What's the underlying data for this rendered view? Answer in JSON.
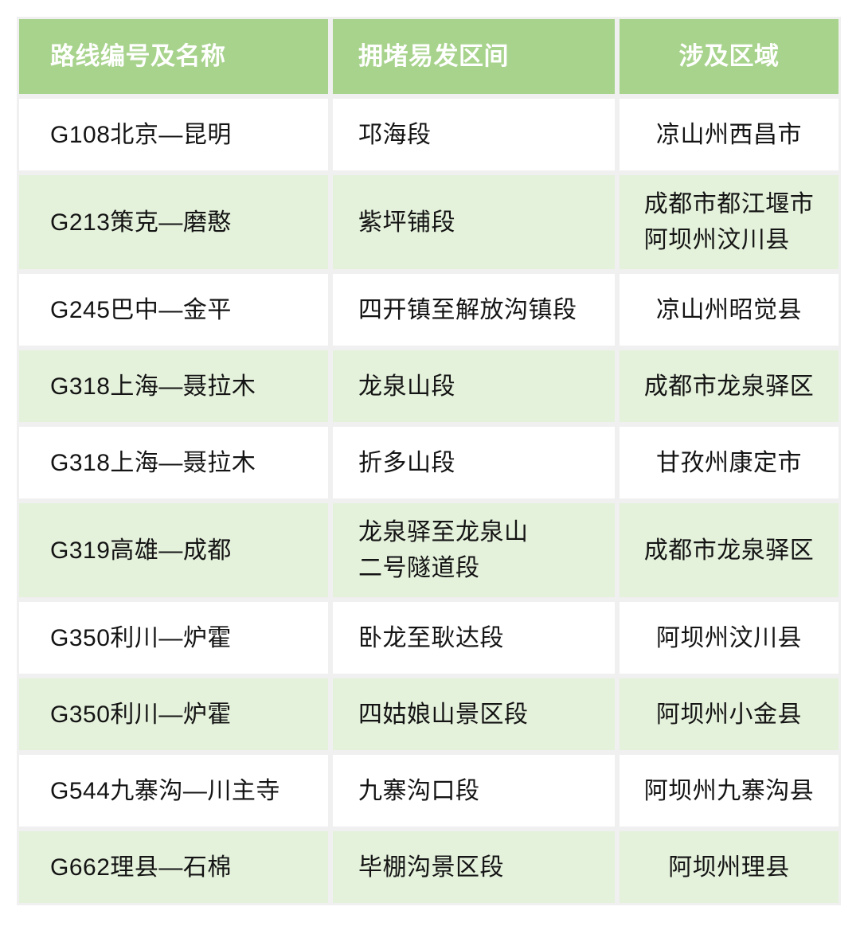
{
  "table": {
    "colors": {
      "header_bg": "#a8d38d",
      "header_text": "#ffffff",
      "row_bg": "#ffffff",
      "row_alt_bg": "#e4f1db",
      "gutter": "#f0f0f0",
      "body_text": "#141414"
    },
    "columns": [
      {
        "label": "路线编号及名称"
      },
      {
        "label": "拥堵易发区间"
      },
      {
        "label": "涉及区域"
      }
    ],
    "rows": [
      {
        "route": "G108北京—昆明",
        "section": "邛海段",
        "region": "凉山州西昌市"
      },
      {
        "route": "G213策克—磨憨",
        "section": "紫坪铺段",
        "region": "成都市都江堰市\n阿坝州汶川县"
      },
      {
        "route": "G245巴中—金平",
        "section": "四开镇至解放沟镇段",
        "region": "凉山州昭觉县"
      },
      {
        "route": "G318上海—聂拉木",
        "section": "龙泉山段",
        "region": "成都市龙泉驿区"
      },
      {
        "route": "G318上海—聂拉木",
        "section": "折多山段",
        "region": "甘孜州康定市"
      },
      {
        "route": "G319高雄—成都",
        "section": "龙泉驿至龙泉山\n二号隧道段",
        "region": "成都市龙泉驿区"
      },
      {
        "route": "G350利川—炉霍",
        "section": "卧龙至耿达段",
        "region": "阿坝州汶川县"
      },
      {
        "route": "G350利川—炉霍",
        "section": "四姑娘山景区段",
        "region": "阿坝州小金县"
      },
      {
        "route": "G544九寨沟—川主寺",
        "section": "九寨沟口段",
        "region": "阿坝州九寨沟县"
      },
      {
        "route": "G662理县—石棉",
        "section": "毕棚沟景区段",
        "region": "阿坝州理县"
      }
    ]
  }
}
